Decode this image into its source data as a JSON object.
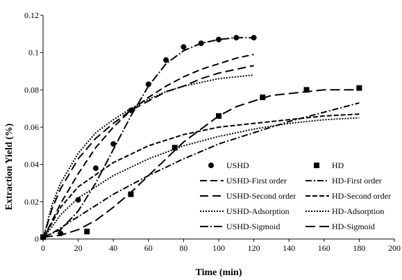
{
  "chart_data": {
    "type": "scatter",
    "xlabel": "Time (min)",
    "ylabel": "Extraction Yield (%)",
    "xlim": [
      0,
      200
    ],
    "ylim": [
      0,
      0.12
    ],
    "xticks": [
      0,
      20,
      40,
      60,
      80,
      100,
      120,
      140,
      160,
      180,
      200
    ],
    "yticks": [
      0,
      0.02,
      0.04,
      0.06,
      0.08,
      0.1,
      0.12
    ],
    "ytick_labels": [
      "0",
      "0.02",
      "0.04",
      "0.06",
      "0.08",
      "0.1",
      "0.12"
    ],
    "grid": false,
    "legend_position": "bottom-right",
    "series": [
      {
        "name": "USHD",
        "kind": "points",
        "marker": "circle",
        "x": [
          0,
          10,
          20,
          30,
          40,
          50,
          60,
          70,
          80,
          90,
          100,
          110,
          120
        ],
        "y": [
          0.001,
          0.003,
          0.021,
          0.038,
          0.051,
          0.069,
          0.083,
          0.096,
          0.103,
          0.105,
          0.107,
          0.108,
          0.108
        ]
      },
      {
        "name": "HD",
        "kind": "points",
        "marker": "square",
        "x": [
          0,
          25,
          50,
          75,
          100,
          125,
          150,
          180
        ],
        "y": [
          0.001,
          0.004,
          0.024,
          0.049,
          0.066,
          0.076,
          0.08,
          0.081
        ]
      },
      {
        "name": "USHD-First order",
        "kind": "line",
        "dash": "10,5",
        "x": [
          0,
          10,
          20,
          30,
          40,
          50,
          60,
          70,
          80,
          90,
          100,
          110,
          120
        ],
        "y": [
          0.0,
          0.019,
          0.035,
          0.049,
          0.06,
          0.069,
          0.076,
          0.082,
          0.087,
          0.091,
          0.094,
          0.097,
          0.099
        ]
      },
      {
        "name": "HD-First order",
        "kind": "line",
        "dash": "9,3,2,3",
        "x": [
          0,
          20,
          40,
          60,
          80,
          100,
          120,
          140,
          160,
          180
        ],
        "y": [
          0.0,
          0.012,
          0.024,
          0.034,
          0.043,
          0.051,
          0.057,
          0.063,
          0.068,
          0.073
        ]
      },
      {
        "name": "USHD-Second order",
        "kind": "line",
        "dash": "12,6",
        "x": [
          0,
          5,
          10,
          20,
          30,
          40,
          50,
          60,
          70,
          80,
          90,
          100,
          110,
          120
        ],
        "y": [
          0.0,
          0.016,
          0.027,
          0.043,
          0.054,
          0.062,
          0.069,
          0.074,
          0.079,
          0.082,
          0.086,
          0.089,
          0.091,
          0.093
        ]
      },
      {
        "name": "HD-Second order",
        "kind": "line",
        "dash": "7,3",
        "x": [
          0,
          10,
          20,
          40,
          60,
          80,
          100,
          120,
          140,
          160,
          180
        ],
        "y": [
          0.0,
          0.017,
          0.028,
          0.041,
          0.05,
          0.056,
          0.06,
          0.062,
          0.064,
          0.066,
          0.067
        ]
      },
      {
        "name": "USHD-Adsorption",
        "kind": "line",
        "dash": "2,2",
        "x": [
          0,
          5,
          10,
          20,
          30,
          40,
          50,
          60,
          70,
          80,
          90,
          100,
          110,
          120
        ],
        "y": [
          0.0,
          0.018,
          0.03,
          0.046,
          0.057,
          0.064,
          0.07,
          0.075,
          0.079,
          0.082,
          0.084,
          0.086,
          0.087,
          0.088
        ]
      },
      {
        "name": "HD-Adsorption",
        "kind": "line",
        "dash": "2,2",
        "x": [
          0,
          10,
          20,
          40,
          60,
          80,
          100,
          120,
          140,
          160,
          180
        ],
        "y": [
          0.0,
          0.013,
          0.022,
          0.034,
          0.043,
          0.05,
          0.055,
          0.059,
          0.062,
          0.064,
          0.065
        ]
      },
      {
        "name": "USHD-Sigmoid",
        "kind": "line",
        "dash": "12,3,2,3",
        "x": [
          0,
          10,
          20,
          30,
          40,
          50,
          60,
          70,
          80,
          90,
          100,
          110,
          120
        ],
        "y": [
          0.001,
          0.005,
          0.015,
          0.03,
          0.048,
          0.066,
          0.082,
          0.094,
          0.101,
          0.105,
          0.107,
          0.108,
          0.108
        ]
      },
      {
        "name": "HD-Sigmoid",
        "kind": "line",
        "dash": "14,6",
        "x": [
          0,
          10,
          20,
          30,
          40,
          50,
          60,
          70,
          80,
          90,
          100,
          110,
          120,
          130,
          140,
          150,
          160,
          170,
          180
        ],
        "y": [
          0.001,
          0.002,
          0.005,
          0.01,
          0.017,
          0.025,
          0.034,
          0.043,
          0.052,
          0.059,
          0.066,
          0.071,
          0.074,
          0.077,
          0.078,
          0.079,
          0.08,
          0.08,
          0.08
        ]
      }
    ],
    "legend_layout": [
      [
        "USHD",
        "HD"
      ],
      [
        "USHD-First order",
        "HD-First order"
      ],
      [
        "USHD-Second order",
        "HD-Second order"
      ],
      [
        "USHD-Adsorption",
        "HD-Adsorption"
      ],
      [
        "USHD-Sigmoid",
        "HD-Sigmoid"
      ]
    ]
  }
}
